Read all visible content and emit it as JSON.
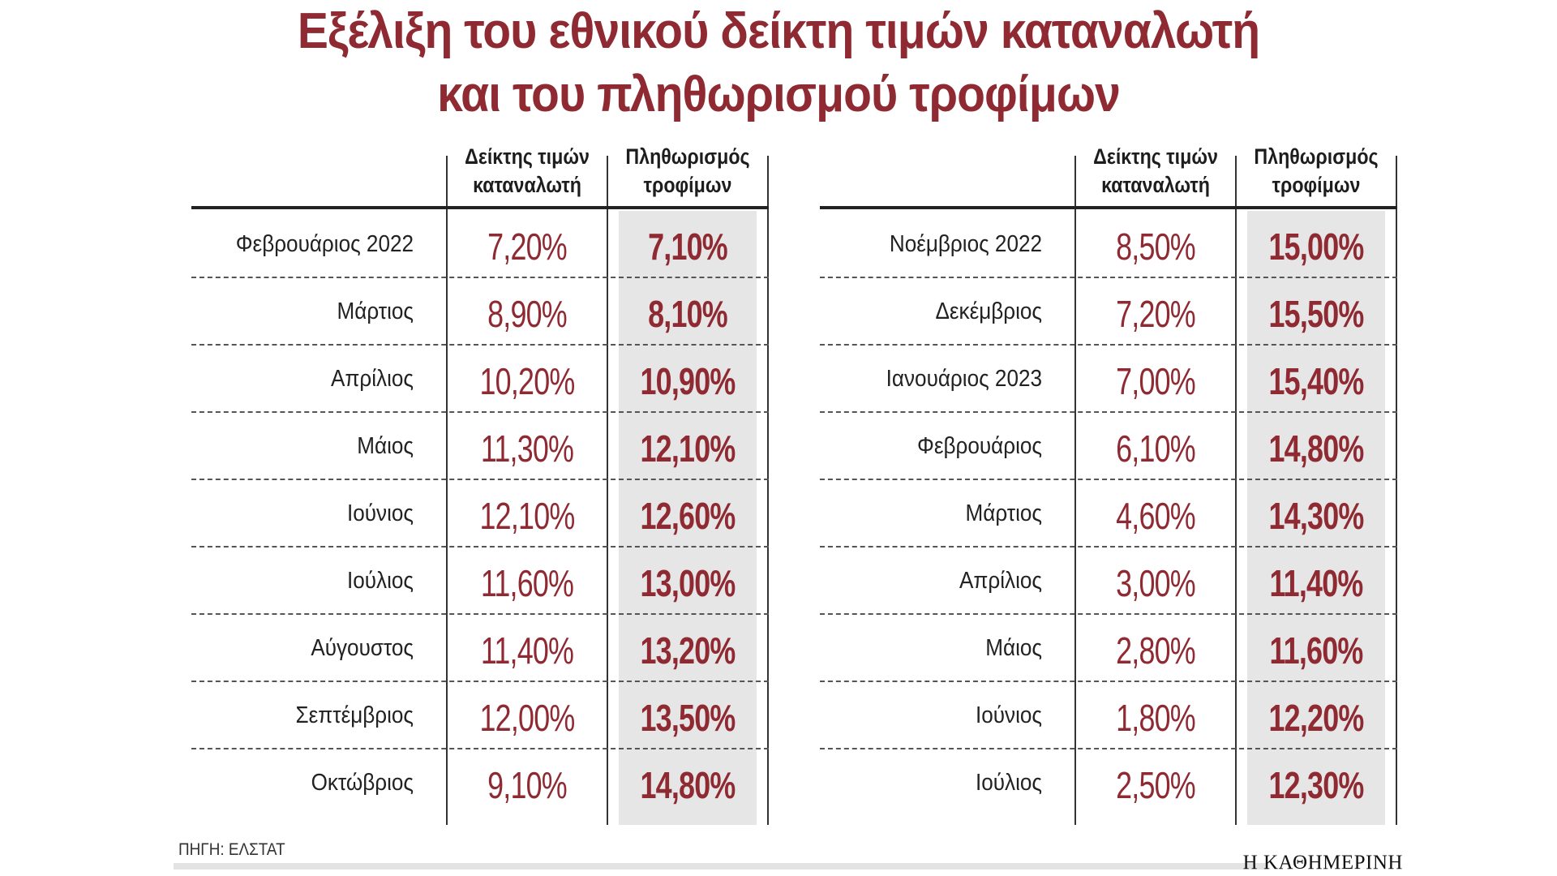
{
  "title": {
    "line1": "Εξέλιξη του εθνικού δείκτη τιμών καταναλωτή",
    "line2": "και του πληθωρισμού τροφίμων"
  },
  "columns": {
    "cpi_line1": "Δείκτης τιμών",
    "cpi_line2": "καταναλωτή",
    "food_line1": "Πληθωρισμός",
    "food_line2": "τροφίμων"
  },
  "source": "ΠΗΓΗ: ΕΛΣΤΑΤ",
  "brand": "Η ΚΑΘΗΜΕΡΙΝΗ",
  "colors": {
    "accent": "#8f2a33",
    "shade": "#e6e6e6"
  },
  "chart_data": {
    "type": "table",
    "title": "Εξέλιξη του εθνικού δείκτη τιμών καταναλωτή και του πληθωρισμού τροφίμων",
    "columns": [
      "",
      "Δείκτης τιμών καταναλωτή",
      "Πληθωρισμός τροφίμων"
    ],
    "tables": [
      {
        "rows": [
          {
            "month": "Φεβρουάριος 2022",
            "cpi": "7,20%",
            "food": "7,10%"
          },
          {
            "month": "Μάρτιος",
            "cpi": "8,90%",
            "food": "8,10%"
          },
          {
            "month": "Απρίλιος",
            "cpi": "10,20%",
            "food": "10,90%"
          },
          {
            "month": "Μάιος",
            "cpi": "11,30%",
            "food": "12,10%"
          },
          {
            "month": "Ιούνιος",
            "cpi": "12,10%",
            "food": "12,60%"
          },
          {
            "month": "Ιούλιος",
            "cpi": "11,60%",
            "food": "13,00%"
          },
          {
            "month": "Αύγουστος",
            "cpi": "11,40%",
            "food": "13,20%"
          },
          {
            "month": "Σεπτέμβριος",
            "cpi": "12,00%",
            "food": "13,50%"
          },
          {
            "month": "Οκτώβριος",
            "cpi": "9,10%",
            "food": "14,80%"
          }
        ]
      },
      {
        "rows": [
          {
            "month": "Νοέμβριος 2022",
            "cpi": "8,50%",
            "food": "15,00%"
          },
          {
            "month": "Δεκέμβριος",
            "cpi": "7,20%",
            "food": "15,50%"
          },
          {
            "month": "Ιανουάριος 2023",
            "cpi": "7,00%",
            "food": "15,40%"
          },
          {
            "month": "Φεβρουάριος",
            "cpi": "6,10%",
            "food": "14,80%"
          },
          {
            "month": "Μάρτιος",
            "cpi": "4,60%",
            "food": "14,30%"
          },
          {
            "month": "Απρίλιος",
            "cpi": "3,00%",
            "food": "11,40%"
          },
          {
            "month": "Μάιος",
            "cpi": "2,80%",
            "food": "11,60%"
          },
          {
            "month": "Ιούνιος",
            "cpi": "1,80%",
            "food": "12,20%"
          },
          {
            "month": "Ιούλιος",
            "cpi": "2,50%",
            "food": "12,30%"
          }
        ]
      }
    ]
  }
}
